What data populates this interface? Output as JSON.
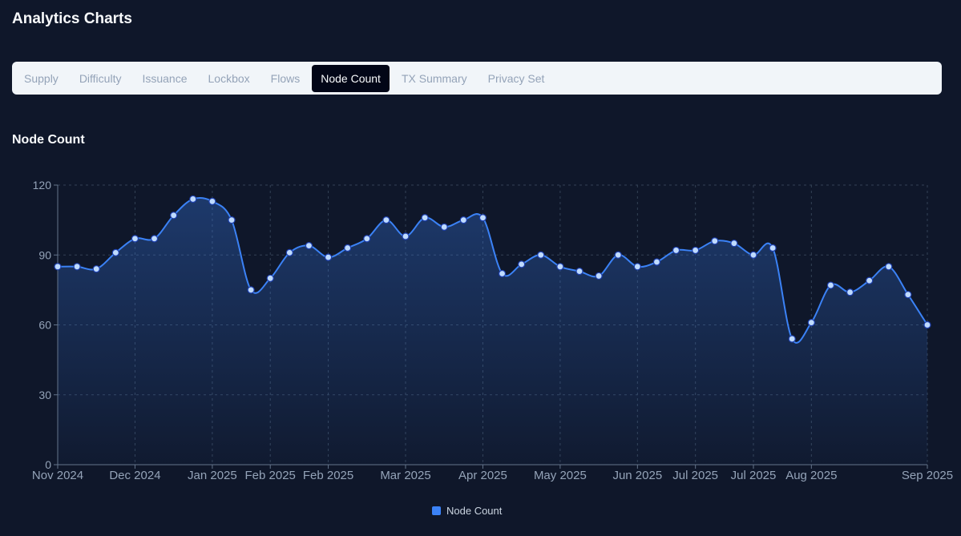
{
  "header": {
    "title": "Analytics Charts"
  },
  "tabs": [
    {
      "label": "Supply",
      "active": false
    },
    {
      "label": "Difficulty",
      "active": false
    },
    {
      "label": "Issuance",
      "active": false
    },
    {
      "label": "Lockbox",
      "active": false
    },
    {
      "label": "Flows",
      "active": false
    },
    {
      "label": "Node Count",
      "active": true
    },
    {
      "label": "TX Summary",
      "active": false
    },
    {
      "label": "Privacy Set",
      "active": false
    }
  ],
  "section": {
    "title": "Node Count"
  },
  "colors": {
    "background": "#0f172a",
    "line": "#3b82f6",
    "marker_fill": "#bfdbfe",
    "grid": "#334155",
    "axis_text": "#94a3b8"
  },
  "chart_data": {
    "type": "area",
    "title": "",
    "xlabel": "",
    "ylabel": "",
    "ylim": [
      0,
      120
    ],
    "yticks": [
      0,
      30,
      60,
      90,
      120
    ],
    "grid": true,
    "legend_position": "bottom-center",
    "x_tick_labels": [
      "Nov 2024",
      "Dec 2024",
      "Jan 2025",
      "Feb 2025",
      "Feb 2025",
      "Mar 2025",
      "Apr 2025",
      "May 2025",
      "Jun 2025",
      "Jul 2025",
      "Jul 2025",
      "Aug 2025",
      "Sep 2025"
    ],
    "x_tick_point_index": [
      0,
      4,
      8,
      11,
      14,
      18,
      22,
      26,
      30,
      33,
      36,
      39,
      45
    ],
    "series": [
      {
        "name": "Node Count",
        "values": [
          85,
          85,
          84,
          91,
          97,
          97,
          107,
          114,
          113,
          105,
          75,
          80,
          91,
          94,
          89,
          93,
          97,
          105,
          98,
          106,
          102,
          105,
          106,
          82,
          86,
          90,
          85,
          83,
          81,
          90,
          85,
          87,
          92,
          92,
          96,
          95,
          90,
          93,
          54,
          61,
          77,
          74,
          79,
          85,
          73,
          60
        ]
      }
    ]
  },
  "legend": {
    "label": "Node Count"
  }
}
